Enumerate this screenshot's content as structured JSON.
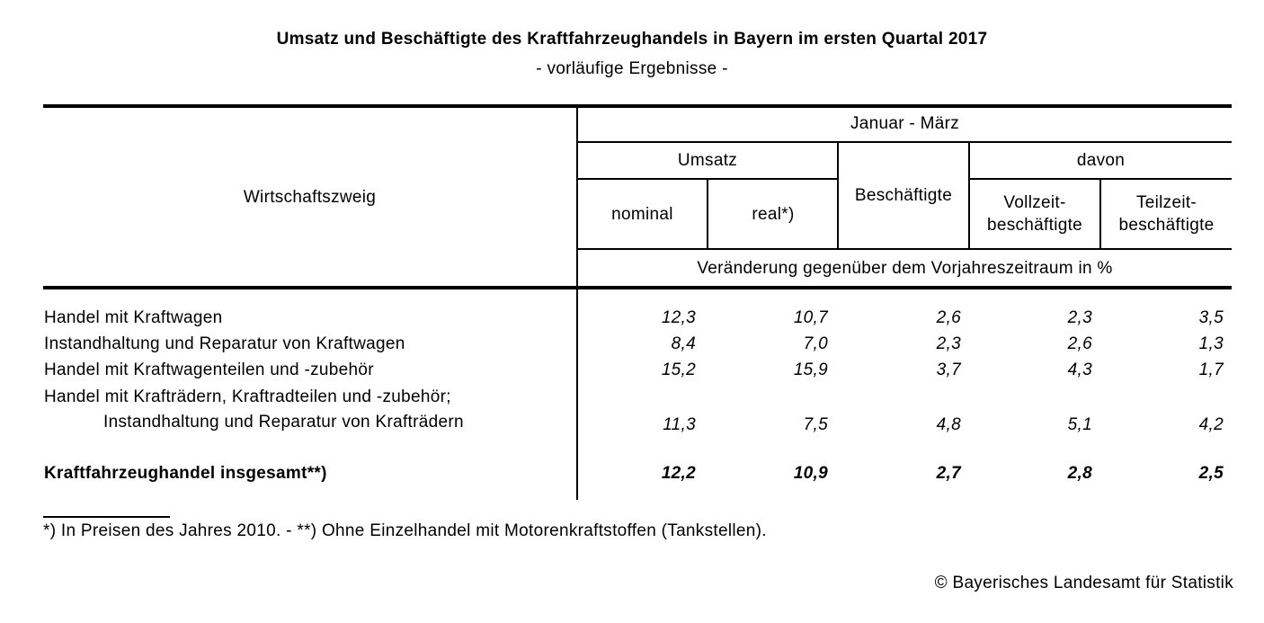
{
  "page": {
    "title": "Umsatz und Beschäftigte des Kraftfahrzeughandels in Bayern im ersten Quartal 2017",
    "subtitle": "- vorläufige Ergebnisse -",
    "footnote": "*) In Preisen des Jahres 2010. - **) Ohne Einzelhandel mit Motorenkraftstoffen (Tankstellen).",
    "copyright": "© Bayerisches Landesamt für Statistik"
  },
  "table": {
    "row_header": "Wirtschaftszweig",
    "period": "Januar - März",
    "groups": {
      "umsatz": "Umsatz",
      "beschaeftigte": "Beschäftigte",
      "davon": "davon"
    },
    "subheaders": {
      "nominal": "nominal",
      "real": "real*)",
      "vollzeit_line1": "Vollzeit-",
      "vollzeit_line2": "beschäftigte",
      "teilzeit_line1": "Teilzeit-",
      "teilzeit_line2": "beschäftigte"
    },
    "unit_note": "Veränderung gegenüber dem Vorjahreszeitraum in %",
    "rows": [
      {
        "label": "Handel mit Kraftwagen",
        "values": [
          "12,3",
          "10,7",
          "2,6",
          "2,3",
          "3,5"
        ]
      },
      {
        "label": "Instandhaltung und Reparatur von Kraftwagen",
        "values": [
          "8,4",
          "7,0",
          "2,3",
          "2,6",
          "1,3"
        ]
      },
      {
        "label": "Handel mit Kraftwagenteilen und -zubehör",
        "values": [
          "15,2",
          "15,9",
          "3,7",
          "4,3",
          "1,7"
        ]
      },
      {
        "label_line1": "Handel mit Krafträdern, Kraftradteilen und -zubehör;",
        "label_line2": "Instandhaltung und Reparatur von Krafträdern",
        "values": [
          "11,3",
          "7,5",
          "4,8",
          "5,1",
          "4,2"
        ]
      }
    ],
    "total": {
      "label": "Kraftfahrzeughandel insgesamt**)",
      "values": [
        "12,2",
        "10,9",
        "2,7",
        "2,8",
        "2,5"
      ]
    }
  }
}
